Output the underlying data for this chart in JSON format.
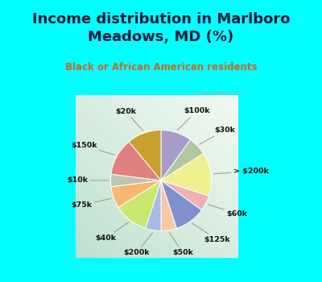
{
  "title": "Income distribution in Marlboro\nMeadows, MD (%)",
  "subtitle": "Black or African American residents",
  "fig_bg": "#00ffff",
  "chart_bg_color1": "#f0faf5",
  "chart_bg_color2": "#c8e8d8",
  "title_color": "#1a1a3a",
  "subtitle_color": "#cc6622",
  "watermark": "  City-Data.com",
  "slices": [
    {
      "label": "$100k",
      "value": 10,
      "color": "#a89cc8"
    },
    {
      "label": "$30k",
      "value": 6,
      "color": "#b0c8a0"
    },
    {
      "label": "> $200k",
      "value": 14,
      "color": "#f0f090"
    },
    {
      "label": "$60k",
      "value": 5,
      "color": "#f0b0b8"
    },
    {
      "label": "$125k",
      "value": 10,
      "color": "#8090cc"
    },
    {
      "label": "$50k",
      "value": 5,
      "color": "#f5c8a0"
    },
    {
      "label": "$200k",
      "value": 5,
      "color": "#a8bce8"
    },
    {
      "label": "$40k",
      "value": 11,
      "color": "#c8e870"
    },
    {
      "label": "$75k",
      "value": 7,
      "color": "#f5b870"
    },
    {
      "label": "$10k",
      "value": 4,
      "color": "#c0c4b0"
    },
    {
      "label": "$150k",
      "value": 12,
      "color": "#e08080"
    },
    {
      "label": "$20k",
      "value": 11,
      "color": "#c8a030"
    }
  ]
}
